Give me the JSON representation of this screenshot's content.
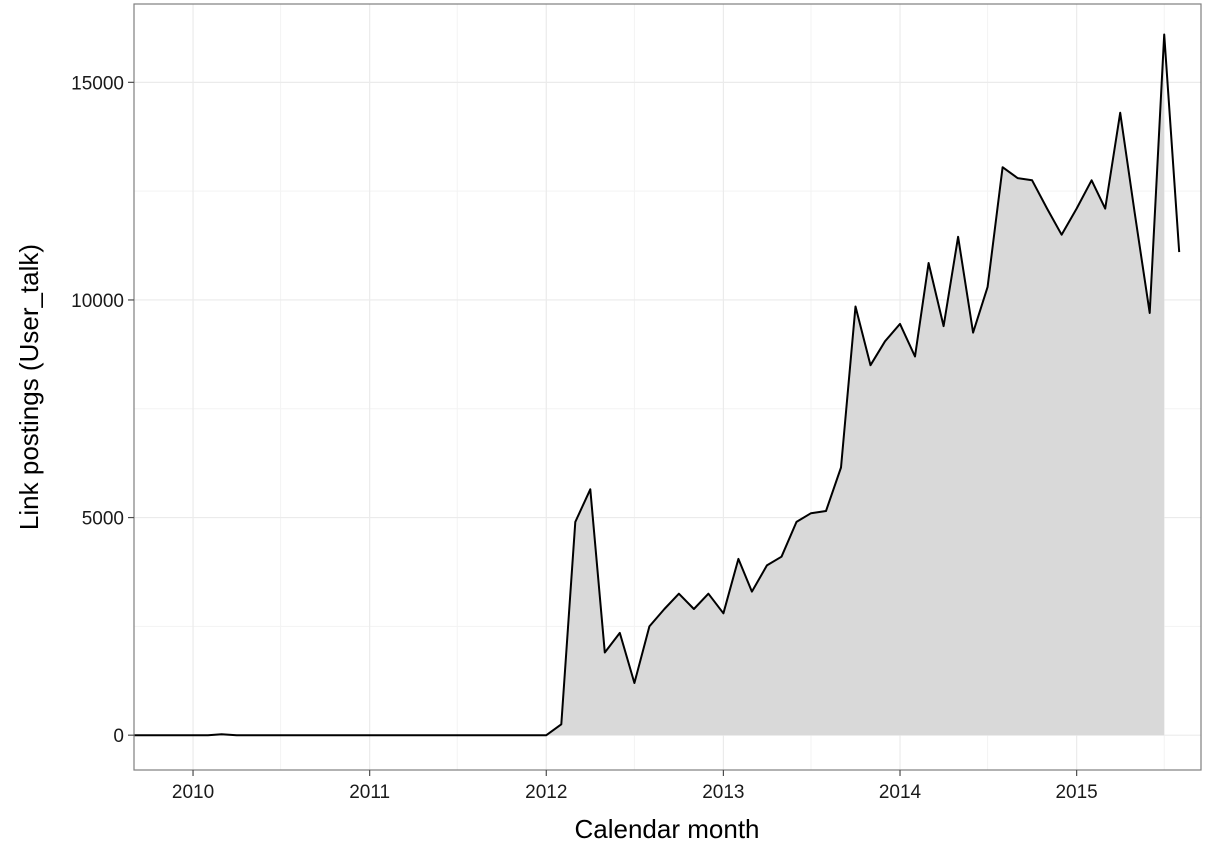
{
  "chart_data": {
    "type": "area",
    "title": "",
    "xlabel": "Calendar month",
    "ylabel": "Link postings (User_talk)",
    "xlim": [
      "2009-09-01",
      "2015-09-15"
    ],
    "ylim": [
      -800,
      16800
    ],
    "grid": true,
    "x_ticks": [
      "2010",
      "2011",
      "2012",
      "2013",
      "2014",
      "2015"
    ],
    "y_ticks": [
      0,
      5000,
      10000,
      15000
    ],
    "colors": {
      "line": "#000000",
      "fill": "#d9d9d9",
      "grid": "#ebebeb",
      "panel_border": "#7f7f7f"
    },
    "series": [
      {
        "x": [
          "2009-09-01",
          "2009-10-01",
          "2009-11-01",
          "2009-12-01",
          "2010-01-01",
          "2010-02-01",
          "2010-03-01",
          "2010-04-01",
          "2010-05-01",
          "2010-06-01",
          "2010-07-01",
          "2010-08-01",
          "2010-09-01",
          "2010-10-01",
          "2010-11-01",
          "2010-12-01",
          "2011-01-01",
          "2011-02-01",
          "2011-03-01",
          "2011-04-01",
          "2011-05-01",
          "2011-06-01",
          "2011-07-01",
          "2011-08-01",
          "2011-09-01",
          "2011-10-01",
          "2011-11-01",
          "2011-12-01",
          "2012-01-01",
          "2012-02-01",
          "2012-03-01",
          "2012-04-01",
          "2012-05-01",
          "2012-06-01",
          "2012-07-01",
          "2012-08-01",
          "2012-09-01",
          "2012-10-01",
          "2012-11-01",
          "2012-12-01",
          "2013-01-01",
          "2013-02-01",
          "2013-03-01",
          "2013-04-01",
          "2013-05-01",
          "2013-06-01",
          "2013-07-01",
          "2013-08-01",
          "2013-09-01",
          "2013-10-01",
          "2013-11-01",
          "2013-12-01",
          "2014-01-01",
          "2014-02-01",
          "2014-03-01",
          "2014-04-01",
          "2014-05-01",
          "2014-06-01",
          "2014-07-01",
          "2014-08-01",
          "2014-09-01",
          "2014-10-01",
          "2014-11-01",
          "2014-12-01",
          "2015-01-01",
          "2015-02-01",
          "2015-03-01",
          "2015-04-01",
          "2015-05-01",
          "2015-06-01",
          "2015-07-01",
          "2015-08-01"
        ],
        "values": [
          0,
          0,
          0,
          0,
          0,
          0,
          20,
          0,
          0,
          0,
          0,
          0,
          0,
          0,
          0,
          0,
          0,
          0,
          0,
          0,
          0,
          0,
          0,
          0,
          0,
          0,
          0,
          0,
          0,
          250,
          4900,
          5650,
          1900,
          2350,
          1200,
          2500,
          2900,
          3250,
          2900,
          3250,
          2800,
          4050,
          3300,
          3900,
          4100,
          4900,
          5100,
          5150,
          6150,
          9850,
          8500,
          9050,
          9450,
          8700,
          10850,
          9400,
          11450,
          9250,
          10300,
          13050,
          12800,
          12750,
          12100,
          11500,
          12100,
          12750,
          12100,
          14300,
          12000,
          9700,
          16100,
          11100
        ]
      }
    ]
  }
}
